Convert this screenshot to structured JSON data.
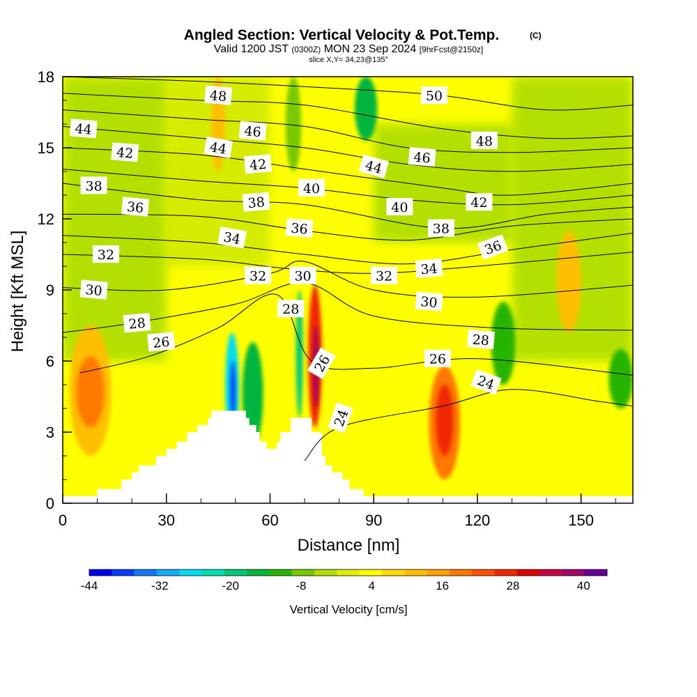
{
  "chart_data": {
    "type": "heatmap",
    "title": "Angled Section: Vertical Velocity & Pot.Temp.",
    "title_tag": "(C)",
    "subtitle": {
      "valid_prefix": "Valid 1200 JST",
      "utc": "(0300Z)",
      "date": "MON 23 Sep 2024",
      "forecast": "[9hrFcst@2150z]"
    },
    "slice_label": "slice X,Y= 34,23@135°",
    "xlabel": "Distance [nm]",
    "ylabel": "Height [Kft MSL]",
    "xlim": [
      0,
      165
    ],
    "ylim": [
      0,
      18
    ],
    "x_ticks": [
      0,
      30,
      60,
      90,
      120,
      150
    ],
    "y_ticks": [
      0,
      3,
      6,
      9,
      12,
      15,
      18
    ],
    "colorbar": {
      "label": "Vertical Velocity [cm/s]",
      "levels": [
        -44,
        -40,
        -36,
        -32,
        -28,
        -24,
        -20,
        -16,
        -12,
        -8,
        -4,
        0,
        4,
        8,
        12,
        16,
        20,
        24,
        28,
        32,
        36,
        40,
        44
      ],
      "colors": [
        "#0000f0",
        "#0a3cf5",
        "#1478f5",
        "#14aaf5",
        "#00dcf0",
        "#00dcb4",
        "#00c878",
        "#00b43c",
        "#28b400",
        "#78c800",
        "#b4dc00",
        "#dcf000",
        "#ffff00",
        "#ffdc00",
        "#ffbe00",
        "#ffa000",
        "#ff7800",
        "#ff5000",
        "#f02800",
        "#dc0000",
        "#c80046",
        "#a0006e",
        "#640096"
      ],
      "tick_labels": [
        "-44",
        "-32",
        "-20",
        "-8",
        "4",
        "16",
        "28",
        "40"
      ]
    },
    "vertical_velocity_cells": [
      {
        "x": [
          2,
          14
        ],
        "y": [
          2,
          7.5
        ],
        "value": 14
      },
      {
        "x": [
          4,
          12
        ],
        "y": [
          3.2,
          6.2
        ],
        "value": 22
      },
      {
        "x": [
          47,
          51
        ],
        "y": [
          2.5,
          7.2
        ],
        "value": -26
      },
      {
        "x": [
          48.5,
          50
        ],
        "y": [
          3.5,
          6
        ],
        "value": -40
      },
      {
        "x": [
          52,
          58
        ],
        "y": [
          2.4,
          6.8
        ],
        "value": -14
      },
      {
        "x": [
          67.5,
          69.5
        ],
        "y": [
          3.6,
          9
        ],
        "value": -18
      },
      {
        "x": [
          71,
          75
        ],
        "y": [
          3.2,
          9.2
        ],
        "value": 28
      },
      {
        "x": [
          72.5,
          74
        ],
        "y": [
          4,
          7.5
        ],
        "value": 40
      },
      {
        "x": [
          106,
          115
        ],
        "y": [
          1,
          5.8
        ],
        "value": 20
      },
      {
        "x": [
          108,
          113
        ],
        "y": [
          2,
          5
        ],
        "value": 30
      },
      {
        "x": [
          143,
          150
        ],
        "y": [
          7.2,
          11.5
        ],
        "value": 14
      },
      {
        "x": [
          124,
          131
        ],
        "y": [
          5,
          8.5
        ],
        "value": -10
      },
      {
        "x": [
          158,
          165
        ],
        "y": [
          4,
          6.5
        ],
        "value": -10
      },
      {
        "x": [
          84.5,
          91
        ],
        "y": [
          15.3,
          18
        ],
        "value": -14
      },
      {
        "x": [
          64.5,
          69
        ],
        "y": [
          14,
          18
        ],
        "value": -8
      },
      {
        "x": [
          43,
          47
        ],
        "y": [
          14,
          18
        ],
        "value": 12
      }
    ],
    "potential_temperature_contours": [
      {
        "label": "24",
        "points": [
          [
            70,
            1.8
          ],
          [
            80,
            3.2
          ],
          [
            110,
            4.1
          ],
          [
            130,
            4.8
          ],
          [
            155,
            4.3
          ],
          [
            165,
            4.1
          ]
        ]
      },
      {
        "label": "26",
        "points": [
          [
            5,
            5.5
          ],
          [
            25,
            6.2
          ],
          [
            45,
            7.4
          ],
          [
            62,
            8.8
          ],
          [
            72,
            6
          ],
          [
            90,
            5.7
          ],
          [
            120,
            6.1
          ],
          [
            165,
            5.4
          ]
        ]
      },
      {
        "label": "28",
        "points": [
          [
            0,
            7.2
          ],
          [
            20,
            7.6
          ],
          [
            50,
            8.4
          ],
          [
            70,
            9.3
          ],
          [
            90,
            7.9
          ],
          [
            125,
            7.4
          ],
          [
            165,
            7.3
          ]
        ]
      },
      {
        "label": "30",
        "points": [
          [
            0,
            9.1
          ],
          [
            30,
            9.0
          ],
          [
            60,
            9.7
          ],
          [
            70,
            10.2
          ],
          [
            90,
            9.0
          ],
          [
            120,
            8.7
          ],
          [
            165,
            9.2
          ]
        ]
      },
      {
        "label": "32",
        "points": [
          [
            0,
            10.5
          ],
          [
            40,
            10.3
          ],
          [
            65,
            9.9
          ],
          [
            90,
            9.7
          ],
          [
            120,
            10.0
          ],
          [
            165,
            10.6
          ]
        ]
      },
      {
        "label": "34",
        "points": [
          [
            0,
            11.3
          ],
          [
            40,
            11.0
          ],
          [
            70,
            10.5
          ],
          [
            100,
            10.1
          ],
          [
            130,
            10.7
          ],
          [
            165,
            11.4
          ]
        ]
      },
      {
        "label": "36",
        "points": [
          [
            0,
            12.2
          ],
          [
            40,
            12.1
          ],
          [
            70,
            11.5
          ],
          [
            100,
            11.1
          ],
          [
            130,
            11.7
          ],
          [
            165,
            12.0
          ]
        ]
      },
      {
        "label": "38",
        "points": [
          [
            0,
            13.5
          ],
          [
            40,
            12.8
          ],
          [
            70,
            12.6
          ],
          [
            110,
            11.6
          ],
          [
            140,
            12.2
          ],
          [
            165,
            12.5
          ]
        ]
      },
      {
        "label": "40",
        "points": [
          [
            0,
            14.1
          ],
          [
            40,
            13.6
          ],
          [
            70,
            13.3
          ],
          [
            100,
            12.8
          ],
          [
            130,
            12.6
          ],
          [
            165,
            13.0
          ]
        ]
      },
      {
        "label": "42",
        "points": [
          [
            0,
            15
          ],
          [
            40,
            14.7
          ],
          [
            70,
            14.1
          ],
          [
            110,
            13.3
          ],
          [
            130,
            13.0
          ],
          [
            165,
            13.5
          ]
        ]
      },
      {
        "label": "44",
        "points": [
          [
            0,
            15.9
          ],
          [
            40,
            15.4
          ],
          [
            70,
            15.0
          ],
          [
            100,
            14.3
          ],
          [
            130,
            14.0
          ],
          [
            165,
            14.3
          ]
        ]
      },
      {
        "label": "46",
        "points": [
          [
            0,
            16.6
          ],
          [
            40,
            16.2
          ],
          [
            70,
            15.9
          ],
          [
            100,
            15.0
          ],
          [
            130,
            14.8
          ],
          [
            165,
            15.0
          ]
        ]
      },
      {
        "label": "48",
        "points": [
          [
            0,
            17.3
          ],
          [
            40,
            17.0
          ],
          [
            70,
            16.8
          ],
          [
            110,
            15.8
          ],
          [
            140,
            15.4
          ],
          [
            165,
            15.5
          ]
        ]
      },
      {
        "label": "50",
        "points": [
          [
            0,
            18
          ],
          [
            40,
            17.8
          ],
          [
            80,
            17.5
          ],
          [
            110,
            17.2
          ],
          [
            140,
            16.6
          ],
          [
            165,
            16.8
          ]
        ]
      }
    ],
    "contour_labels": [
      {
        "text": "24",
        "x": 80.5,
        "y": 3.6,
        "angle": -70
      },
      {
        "text": "24",
        "x": 122.5,
        "y": 5.1,
        "angle": 20
      },
      {
        "text": "26",
        "x": 28.5,
        "y": 6.8,
        "angle": -5
      },
      {
        "text": "26",
        "x": 75,
        "y": 5.9,
        "angle": -60
      },
      {
        "text": "26",
        "x": 108.5,
        "y": 6.1,
        "angle": 0
      },
      {
        "text": "28",
        "x": 21.5,
        "y": 7.6,
        "angle": -5
      },
      {
        "text": "28",
        "x": 66,
        "y": 8.2,
        "angle": 0
      },
      {
        "text": "28",
        "x": 121,
        "y": 6.9,
        "angle": 5
      },
      {
        "text": "30",
        "x": 9,
        "y": 9.0,
        "angle": 5
      },
      {
        "text": "30",
        "x": 69.5,
        "y": 9.6,
        "angle": 0
      },
      {
        "text": "30",
        "x": 106,
        "y": 8.5,
        "angle": 5
      },
      {
        "text": "32",
        "x": 12.5,
        "y": 10.5,
        "angle": 0
      },
      {
        "text": "32",
        "x": 56.5,
        "y": 9.6,
        "angle": 0
      },
      {
        "text": "32",
        "x": 93,
        "y": 9.6,
        "angle": 0
      },
      {
        "text": "34",
        "x": 49,
        "y": 11.2,
        "angle": 10
      },
      {
        "text": "34",
        "x": 106,
        "y": 9.9,
        "angle": -5
      },
      {
        "text": "36",
        "x": 21,
        "y": 12.5,
        "angle": 5
      },
      {
        "text": "36",
        "x": 68.5,
        "y": 11.6,
        "angle": 5
      },
      {
        "text": "36",
        "x": 124.5,
        "y": 10.8,
        "angle": -20
      },
      {
        "text": "38",
        "x": 9,
        "y": 13.4,
        "angle": 0
      },
      {
        "text": "38",
        "x": 56,
        "y": 12.7,
        "angle": -5
      },
      {
        "text": "38",
        "x": 109.5,
        "y": 11.6,
        "angle": 0
      },
      {
        "text": "40",
        "x": 72,
        "y": 13.3,
        "angle": 0
      },
      {
        "text": "40",
        "x": 97.5,
        "y": 12.5,
        "angle": 0
      },
      {
        "text": "42",
        "x": 18,
        "y": 14.8,
        "angle": 5
      },
      {
        "text": "42",
        "x": 56.5,
        "y": 14.3,
        "angle": -5
      },
      {
        "text": "42",
        "x": 120.5,
        "y": 12.7,
        "angle": 0
      },
      {
        "text": "44",
        "x": 6,
        "y": 15.8,
        "angle": 5
      },
      {
        "text": "44",
        "x": 45,
        "y": 15.0,
        "angle": 10
      },
      {
        "text": "44",
        "x": 90,
        "y": 14.2,
        "angle": 15
      },
      {
        "text": "46",
        "x": 55,
        "y": 15.7,
        "angle": 5
      },
      {
        "text": "46",
        "x": 104,
        "y": 14.6,
        "angle": 5
      },
      {
        "text": "48",
        "x": 45,
        "y": 17.2,
        "angle": 5
      },
      {
        "text": "48",
        "x": 122,
        "y": 15.3,
        "angle": 0
      },
      {
        "text": "50",
        "x": 107.5,
        "y": 17.2,
        "angle": 0
      }
    ],
    "terrain_profile": [
      [
        0,
        0.3
      ],
      [
        10,
        0.3
      ],
      [
        10,
        0.6
      ],
      [
        17,
        0.6
      ],
      [
        17,
        1
      ],
      [
        20,
        1
      ],
      [
        20,
        1.3
      ],
      [
        22,
        1.3
      ],
      [
        22,
        1.6
      ],
      [
        27,
        1.6
      ],
      [
        27,
        2
      ],
      [
        30,
        2
      ],
      [
        30,
        2.3
      ],
      [
        33,
        2.3
      ],
      [
        33,
        2.6
      ],
      [
        36,
        2.6
      ],
      [
        36,
        3
      ],
      [
        39,
        3
      ],
      [
        39,
        3.3
      ],
      [
        42,
        3.3
      ],
      [
        42,
        3.6
      ],
      [
        43,
        3.6
      ],
      [
        43,
        3.9
      ],
      [
        53,
        3.9
      ],
      [
        53,
        3.6
      ],
      [
        54,
        3.6
      ],
      [
        54,
        3.3
      ],
      [
        56,
        3.3
      ],
      [
        56,
        3
      ],
      [
        57,
        3
      ],
      [
        57,
        2.6
      ],
      [
        59,
        2.6
      ],
      [
        59,
        2.3
      ],
      [
        62,
        2.3
      ],
      [
        62,
        2.6
      ],
      [
        63,
        2.6
      ],
      [
        63,
        3
      ],
      [
        66,
        3
      ],
      [
        66,
        3.6
      ],
      [
        72,
        3.6
      ],
      [
        72,
        3
      ],
      [
        75,
        3
      ],
      [
        75,
        2
      ],
      [
        76,
        2
      ],
      [
        76,
        1.6
      ],
      [
        78,
        1.6
      ],
      [
        78,
        1.3
      ],
      [
        81,
        1.3
      ],
      [
        81,
        1
      ],
      [
        83,
        1
      ],
      [
        83,
        0.6
      ],
      [
        87,
        0.6
      ],
      [
        87,
        0.3
      ],
      [
        165,
        0.3
      ]
    ]
  }
}
